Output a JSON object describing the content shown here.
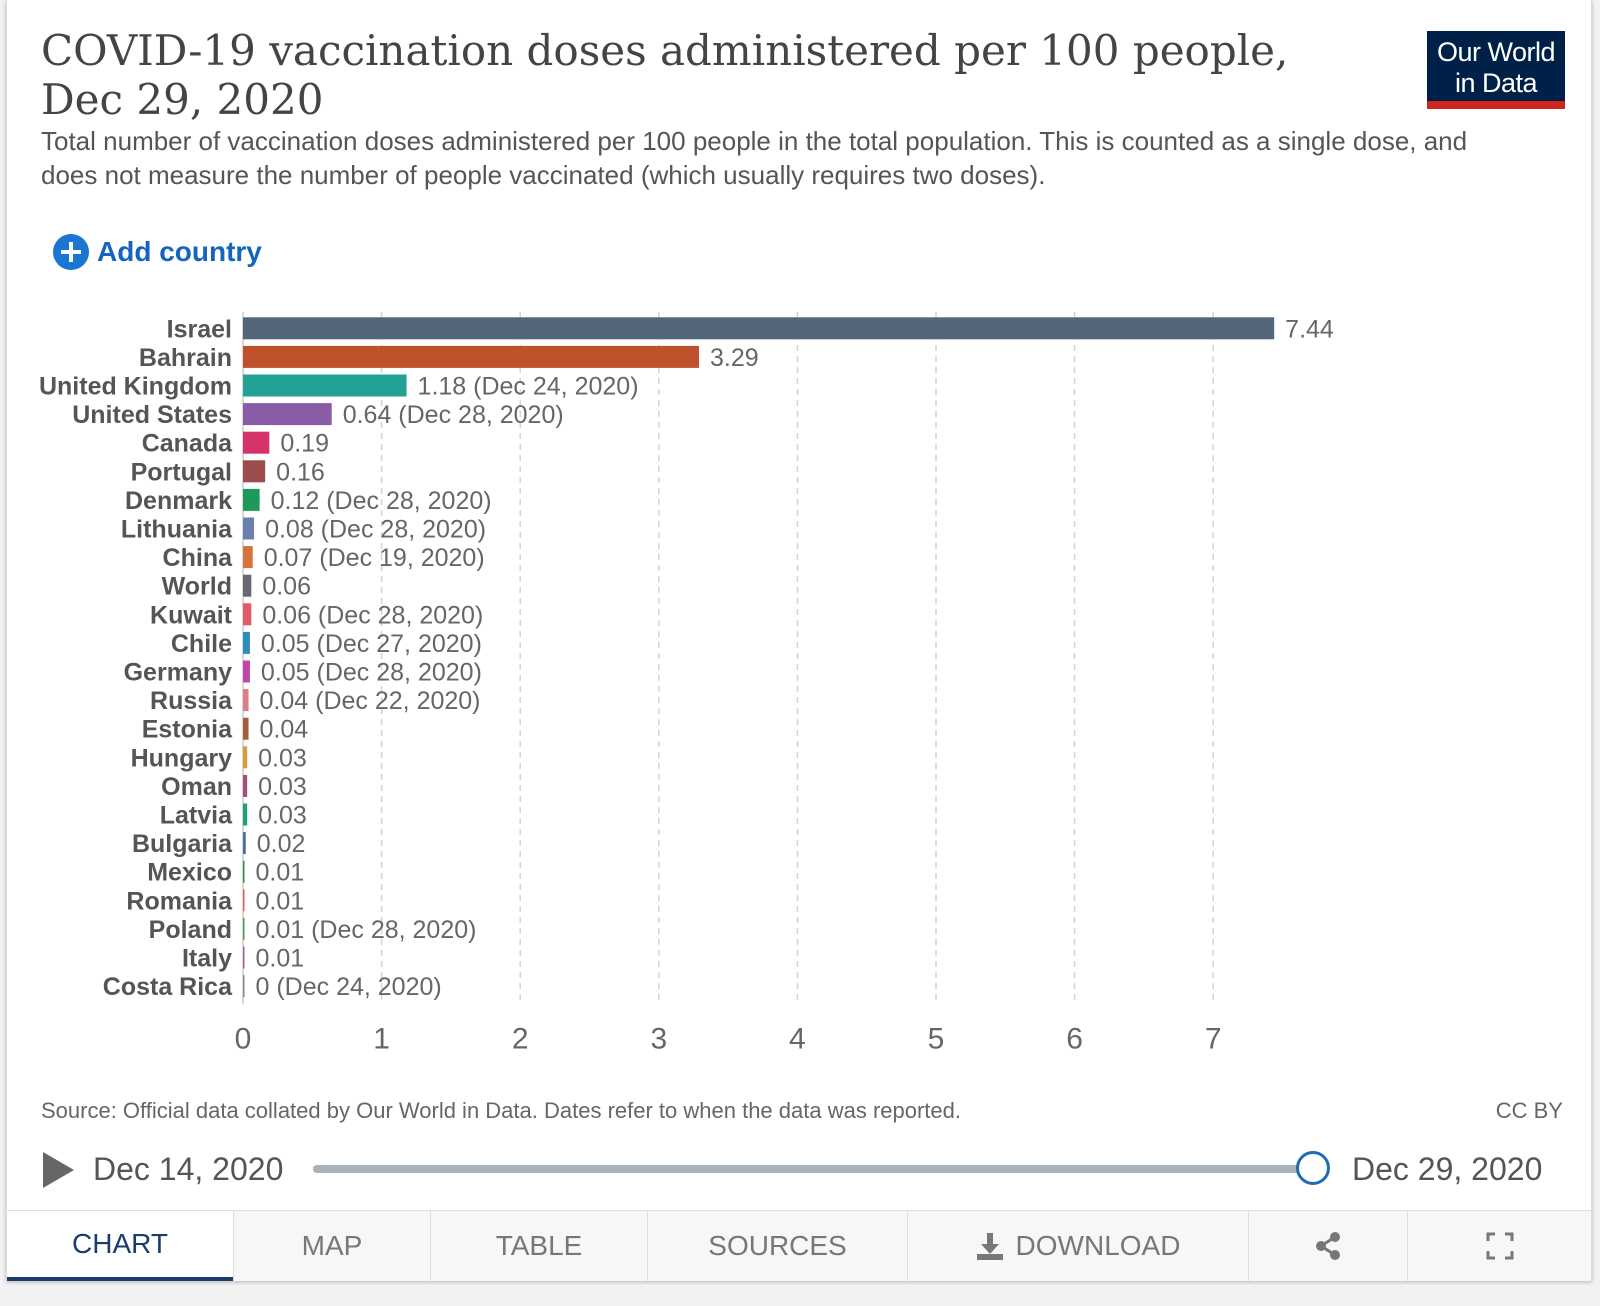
{
  "header": {
    "title": "COVID-19 vaccination doses administered per 100 people, Dec 29, 2020",
    "subtitle": "Total number of vaccination doses administered per 100 people in the total population. This is counted as a single dose, and does not measure the number of people vaccinated (which usually requires two doses).",
    "logo_line1": "Our World",
    "logo_line2": "in Data",
    "logo_color": "#002147",
    "logo_accent": "#ce261e"
  },
  "controls": {
    "add_country_label": "Add country"
  },
  "chart_data": {
    "type": "bar",
    "orientation": "horizontal",
    "title": "COVID-19 vaccination doses administered per 100 people, Dec 29, 2020",
    "xlim": [
      0,
      7.5
    ],
    "x_ticks": [
      0,
      1,
      2,
      3,
      4,
      5,
      6,
      7
    ],
    "grid": "vertical dashed",
    "bars": [
      {
        "country": "Israel",
        "value": 7.44,
        "label": "7.44",
        "color": "#55657a"
      },
      {
        "country": "Bahrain",
        "value": 3.29,
        "label": "3.29",
        "color": "#c0522b"
      },
      {
        "country": "United Kingdom",
        "value": 1.18,
        "label": "1.18 (Dec 24, 2020)",
        "color": "#22a294"
      },
      {
        "country": "United States",
        "value": 0.64,
        "label": "0.64 (Dec 28, 2020)",
        "color": "#8a5ca6"
      },
      {
        "country": "Canada",
        "value": 0.19,
        "label": "0.19",
        "color": "#d6336c"
      },
      {
        "country": "Portugal",
        "value": 0.16,
        "label": "0.16",
        "color": "#9b4d4d"
      },
      {
        "country": "Denmark",
        "value": 0.12,
        "label": "0.12 (Dec 28, 2020)",
        "color": "#1d9a5b"
      },
      {
        "country": "Lithuania",
        "value": 0.08,
        "label": "0.08 (Dec 28, 2020)",
        "color": "#6b7fb0"
      },
      {
        "country": "China",
        "value": 0.07,
        "label": "0.07 (Dec 19, 2020)",
        "color": "#d4733a"
      },
      {
        "country": "World",
        "value": 0.06,
        "label": "0.06",
        "color": "#666a70"
      },
      {
        "country": "Kuwait",
        "value": 0.06,
        "label": "0.06 (Dec 28, 2020)",
        "color": "#e05a6a"
      },
      {
        "country": "Chile",
        "value": 0.05,
        "label": "0.05 (Dec 27, 2020)",
        "color": "#2b8cbe"
      },
      {
        "country": "Germany",
        "value": 0.05,
        "label": "0.05 (Dec 28, 2020)",
        "color": "#c246a8"
      },
      {
        "country": "Russia",
        "value": 0.04,
        "label": "0.04 (Dec 22, 2020)",
        "color": "#e07b8a"
      },
      {
        "country": "Estonia",
        "value": 0.04,
        "label": "0.04",
        "color": "#a0623a"
      },
      {
        "country": "Hungary",
        "value": 0.03,
        "label": "0.03",
        "color": "#d99a3a"
      },
      {
        "country": "Oman",
        "value": 0.03,
        "label": "0.03",
        "color": "#a0507a"
      },
      {
        "country": "Latvia",
        "value": 0.03,
        "label": "0.03",
        "color": "#1ea36c"
      },
      {
        "country": "Bulgaria",
        "value": 0.02,
        "label": "0.02",
        "color": "#4a6fa0"
      },
      {
        "country": "Mexico",
        "value": 0.01,
        "label": "0.01",
        "color": "#2f8f4f"
      },
      {
        "country": "Romania",
        "value": 0.01,
        "label": "0.01",
        "color": "#e06060"
      },
      {
        "country": "Poland",
        "value": 0.01,
        "label": "0.01 (Dec 28, 2020)",
        "color": "#3aa05a"
      },
      {
        "country": "Italy",
        "value": 0.01,
        "label": "0.01",
        "color": "#b05aa0"
      },
      {
        "country": "Costa Rica",
        "value": 0,
        "label": "0 (Dec 24, 2020)",
        "color": "#888888"
      }
    ]
  },
  "footer": {
    "source": "Source: Official data collated by Our World in Data. Dates refer to when the data was reported.",
    "license": "CC BY"
  },
  "timeline": {
    "start_date": "Dec 14, 2020",
    "end_date": "Dec 29, 2020",
    "position": 1.0
  },
  "tabs": [
    {
      "label": "CHART",
      "active": true
    },
    {
      "label": "MAP"
    },
    {
      "label": "TABLE"
    },
    {
      "label": "SOURCES"
    },
    {
      "label": "DOWNLOAD"
    },
    {
      "label": ""
    },
    {
      "label": ""
    }
  ]
}
